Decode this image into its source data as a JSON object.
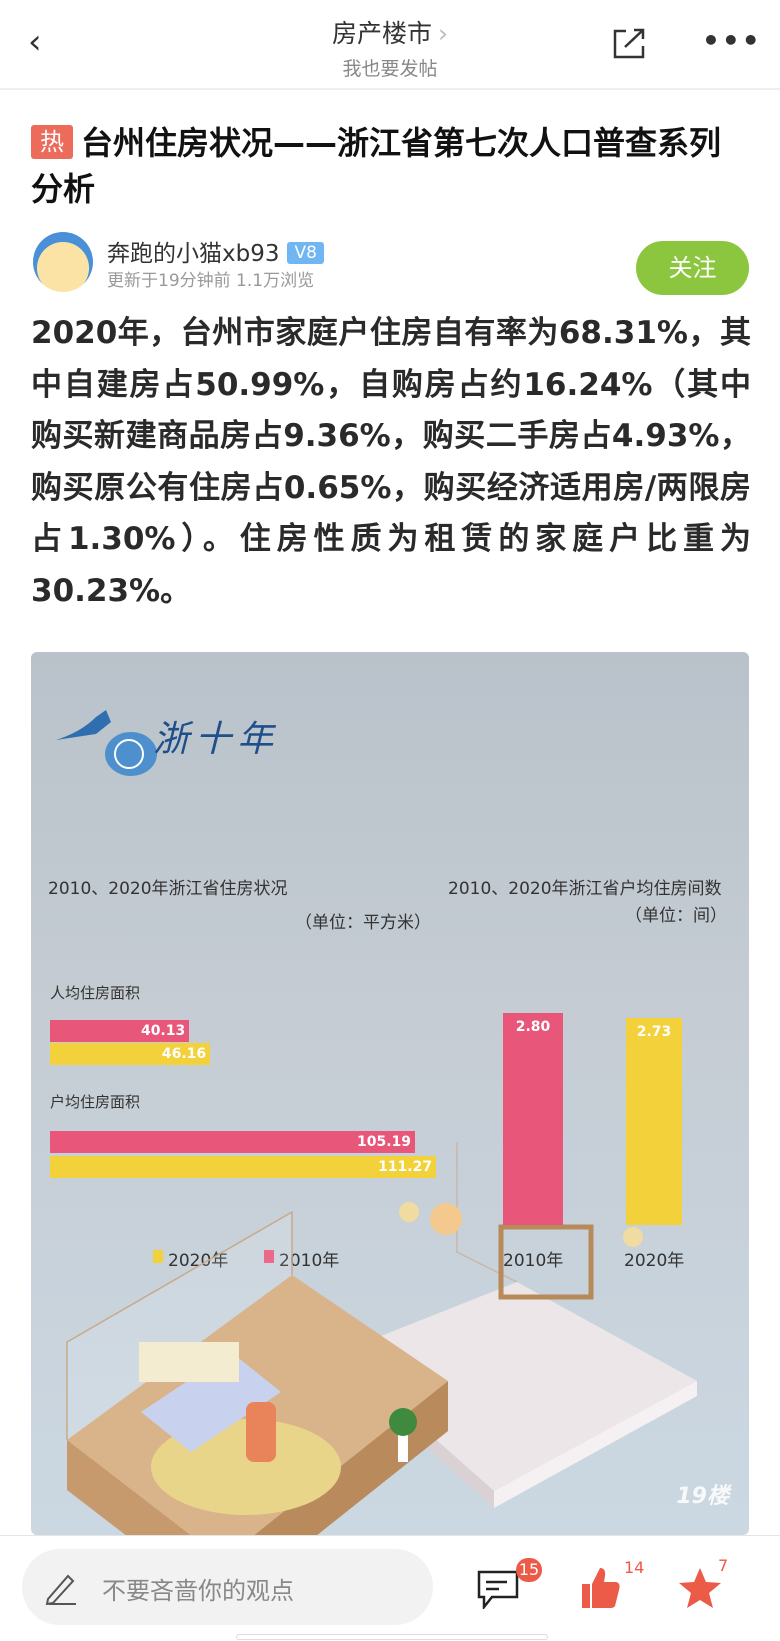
{
  "header": {
    "title": "房产楼市",
    "subtitle": "我也要发帖",
    "icons": [
      "back-icon",
      "share-icon",
      "more-icon"
    ]
  },
  "post": {
    "hot_badge": "热",
    "title": "台州住房状况——浙江省第七次人口普查系列分析",
    "author": {
      "name": "奔跑的小猫xb93",
      "level": "V8",
      "meta": "更新于19分钟前  1.1万浏览"
    },
    "follow_label": "关注",
    "body": "2020年，台州市家庭户住房自有率为68.31%，其中自建房占50.99%，自购房占约16.24%（其中购买新建商品房占9.36%，购买二手房占4.93%，购买原公有住房占0.65%，购买经济适用房/两限房占1.30%）。住房性质为租赁的家庭户比重为30.23%。"
  },
  "figure": {
    "logo_text": "浙十年",
    "watermark": "19楼",
    "watermark_url": "19lou.com",
    "colors": {
      "y2010": "#e8567a",
      "y2020": "#f2d13a"
    }
  },
  "chart_data": [
    {
      "type": "bar",
      "orientation": "horizontal",
      "title": "2010、2020年浙江省住房状况",
      "unit": "（单位：平方米）",
      "categories": [
        "人均住房面积",
        "户均住房面积"
      ],
      "series": [
        {
          "name": "2010年",
          "values": [
            40.13,
            105.19
          ]
        },
        {
          "name": "2020年",
          "values": [
            46.16,
            111.27
          ]
        }
      ],
      "legend": [
        "2020年",
        "2010年"
      ],
      "legend_position": "bottom"
    },
    {
      "type": "bar",
      "orientation": "vertical",
      "title": "2010、2020年浙江省户均住房间数",
      "unit": "（单位：间）",
      "categories": [
        "2010年",
        "2020年"
      ],
      "values": [
        2.8,
        2.73
      ]
    }
  ],
  "bottom_bar": {
    "comment_placeholder": "不要吝啬你的观点",
    "comments": "15",
    "likes": "14",
    "favorites": "7"
  }
}
